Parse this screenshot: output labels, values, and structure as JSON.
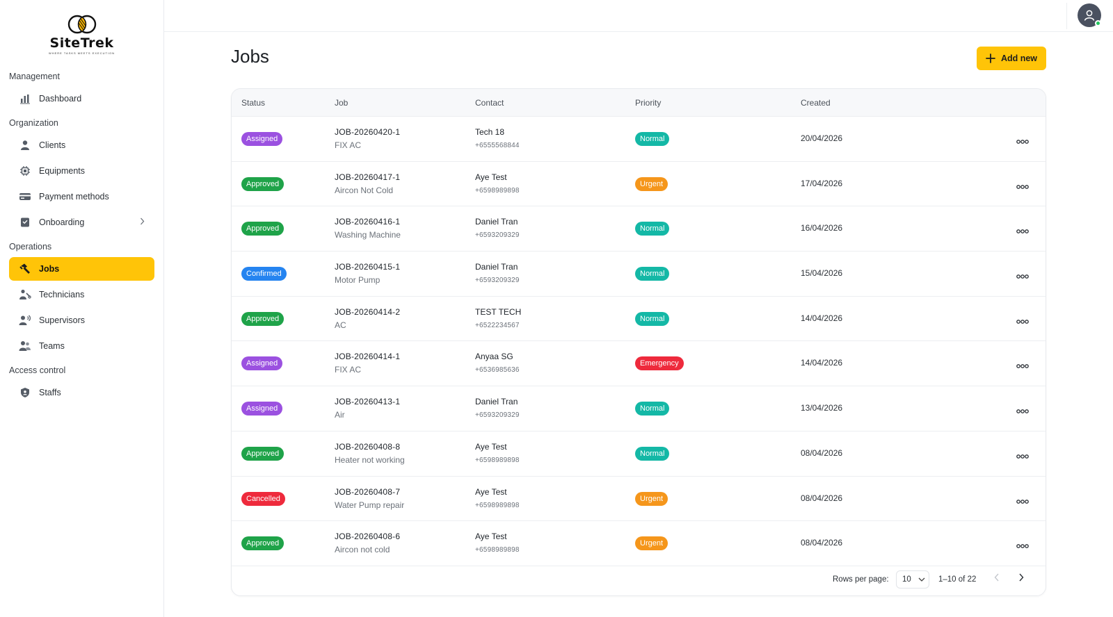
{
  "brand": {
    "name": "SiteTrek",
    "tagline": "WHERE TASKS MEETS EXECUTION"
  },
  "sidebar": {
    "sections": [
      {
        "title": "Management",
        "items": [
          {
            "label": "Dashboard",
            "icon": "chart-icon"
          }
        ]
      },
      {
        "title": "Organization",
        "items": [
          {
            "label": "Clients",
            "icon": "person-icon"
          },
          {
            "label": "Equipments",
            "icon": "chip-icon"
          },
          {
            "label": "Payment methods",
            "icon": "card-icon"
          },
          {
            "label": "Onboarding",
            "icon": "onboarding-icon",
            "has_chevron": true
          }
        ]
      },
      {
        "title": "Operations",
        "items": [
          {
            "label": "Jobs",
            "icon": "hammer-icon",
            "active": true
          },
          {
            "label": "Technicians",
            "icon": "technician-icon"
          },
          {
            "label": "Supervisors",
            "icon": "supervisor-icon"
          },
          {
            "label": "Teams",
            "icon": "team-icon"
          }
        ]
      },
      {
        "title": "Access control",
        "items": [
          {
            "label": "Staffs",
            "icon": "shield-icon"
          }
        ]
      }
    ]
  },
  "header": {
    "title": "Jobs",
    "add_button_label": "Add new"
  },
  "table": {
    "columns": {
      "status": "Status",
      "job": "Job",
      "contact": "Contact",
      "priority": "Priority",
      "created": "Created"
    },
    "rows": [
      {
        "status": "Assigned",
        "job_id": "JOB-20260420-1",
        "job_desc": "FIX AC",
        "contact_name": "Tech 18",
        "contact_phone": "+6555568844",
        "priority": "Normal",
        "created": "20/04/2026"
      },
      {
        "status": "Approved",
        "job_id": "JOB-20260417-1",
        "job_desc": "Aircon Not Cold",
        "contact_name": "Aye Test",
        "contact_phone": "+6598989898",
        "priority": "Urgent",
        "created": "17/04/2026"
      },
      {
        "status": "Approved",
        "job_id": "JOB-20260416-1",
        "job_desc": "Washing Machine",
        "contact_name": "Daniel Tran",
        "contact_phone": "+6593209329",
        "priority": "Normal",
        "created": "16/04/2026"
      },
      {
        "status": "Confirmed",
        "job_id": "JOB-20260415-1",
        "job_desc": "Motor Pump",
        "contact_name": "Daniel Tran",
        "contact_phone": "+6593209329",
        "priority": "Normal",
        "created": "15/04/2026"
      },
      {
        "status": "Approved",
        "job_id": "JOB-20260414-2",
        "job_desc": "AC",
        "contact_name": "TEST TECH",
        "contact_phone": "+6522234567",
        "priority": "Normal",
        "created": "14/04/2026"
      },
      {
        "status": "Assigned",
        "job_id": "JOB-20260414-1",
        "job_desc": "FIX AC",
        "contact_name": "Anyaa SG",
        "contact_phone": "+6536985636",
        "priority": "Emergency",
        "created": "14/04/2026"
      },
      {
        "status": "Assigned",
        "job_id": "JOB-20260413-1",
        "job_desc": "Air",
        "contact_name": "Daniel Tran",
        "contact_phone": "+6593209329",
        "priority": "Normal",
        "created": "13/04/2026"
      },
      {
        "status": "Approved",
        "job_id": "JOB-20260408-8",
        "job_desc": "Heater not working",
        "contact_name": "Aye Test",
        "contact_phone": "+6598989898",
        "priority": "Normal",
        "created": "08/04/2026"
      },
      {
        "status": "Cancelled",
        "job_id": "JOB-20260408-7",
        "job_desc": "Water Pump repair",
        "contact_name": "Aye Test",
        "contact_phone": "+6598989898",
        "priority": "Urgent",
        "created": "08/04/2026"
      },
      {
        "status": "Approved",
        "job_id": "JOB-20260408-6",
        "job_desc": "Aircon not cold",
        "contact_name": "Aye Test",
        "contact_phone": "+6598989898",
        "priority": "Urgent",
        "created": "08/04/2026"
      }
    ]
  },
  "pagination": {
    "rows_per_page_label": "Rows per page:",
    "rows_per_page": "10",
    "range": "1–10 of 22"
  },
  "colors": {
    "accent": "#ffc408",
    "status": {
      "Assigned": "#9b51e0",
      "Approved": "#1fa349",
      "Confirmed": "#2584f0",
      "Cancelled": "#ee2a3c"
    },
    "priority": {
      "Normal": "#14b8a6",
      "Urgent": "#f5961b",
      "Emergency": "#ee2a3c"
    }
  }
}
